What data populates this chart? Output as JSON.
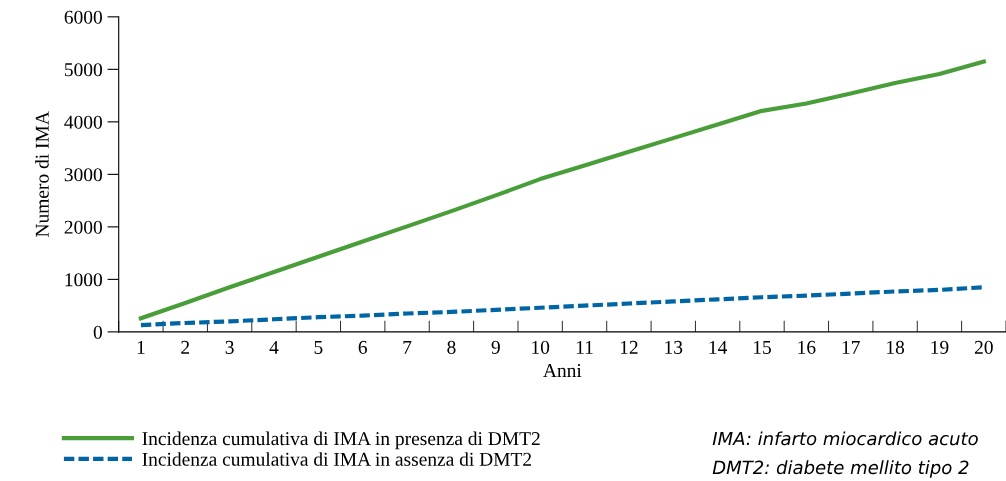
{
  "chart_data": {
    "type": "line",
    "xlabel": "Anni",
    "ylabel": "Numero di IMA",
    "categories": [
      "1",
      "2",
      "3",
      "4",
      "5",
      "6",
      "7",
      "8",
      "9",
      "10",
      "11",
      "12",
      "13",
      "14",
      "15",
      "16",
      "17",
      "18",
      "19",
      "20"
    ],
    "series": [
      {
        "name": "Incidenza cumulativa di IMA in presenza di DMT2",
        "color": "#4a9e3a",
        "line_style": "solid",
        "values": [
          260,
          550,
          850,
          1140,
          1430,
          1720,
          2010,
          2300,
          2600,
          2910,
          3170,
          3430,
          3690,
          3950,
          4210,
          4350,
          4540,
          4740,
          4910,
          5150
        ]
      },
      {
        "name": "Incidenza cumulativa di IMA in assenza di DMT2",
        "color": "#0065a4",
        "line_style": "dashed",
        "values": [
          130,
          170,
          200,
          240,
          280,
          310,
          350,
          380,
          420,
          460,
          500,
          540,
          580,
          620,
          660,
          690,
          730,
          770,
          800,
          850
        ]
      }
    ],
    "ylim": [
      0,
      6000
    ],
    "yticks": [
      0,
      1000,
      2000,
      3000,
      4000,
      5000,
      6000
    ],
    "grid": false,
    "legend": "bottom left",
    "marker": "none",
    "annotations": [
      "IMA: infarto miocardico acuto",
      "DMT2: diabete mellito tipo 2"
    ]
  }
}
